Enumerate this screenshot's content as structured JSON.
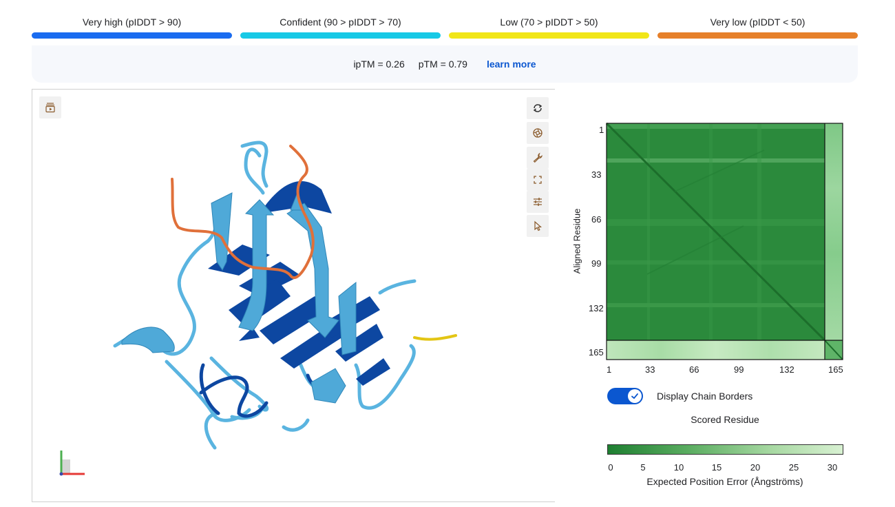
{
  "plddt_legend": [
    {
      "label": "Very high (pIDDT > 90)",
      "color": "#1a6cf0"
    },
    {
      "label": "Confident (90 > pIDDT > 70)",
      "color": "#17c9e6"
    },
    {
      "label": "Low (70 > pIDDT > 50)",
      "color": "#f1e618"
    },
    {
      "label": "Very low (pIDDT < 50)",
      "color": "#e6802a"
    }
  ],
  "metrics": {
    "iptm": "ipTM = 0.26",
    "ptm": "pTM = 0.79",
    "learn_more": "learn more"
  },
  "viewer": {
    "left_tools": [
      {
        "icon": "playback-icon"
      }
    ],
    "right_tools": [
      {
        "icon": "rotate-icon"
      },
      {
        "icon": "camera-icon"
      },
      {
        "icon": "wrench-icon"
      },
      {
        "icon": "fullscreen-icon"
      },
      {
        "icon": "sliders-icon"
      },
      {
        "icon": "cursor-icon"
      }
    ]
  },
  "pae": {
    "ylabel": "Aligned Residue",
    "xlabel": "Scored Residue",
    "ticks": [
      "1",
      "33",
      "66",
      "99",
      "132",
      "165"
    ],
    "toggle_label": "Display Chain Borders",
    "toggle_on": true,
    "colorbar_ticks": [
      "0",
      "5",
      "10",
      "15",
      "20",
      "25",
      "30"
    ],
    "colorbar_title": "Expected Position Error (Ångströms)",
    "colors": {
      "low": "#1e7f31",
      "high": "#d8f1d2"
    }
  }
}
